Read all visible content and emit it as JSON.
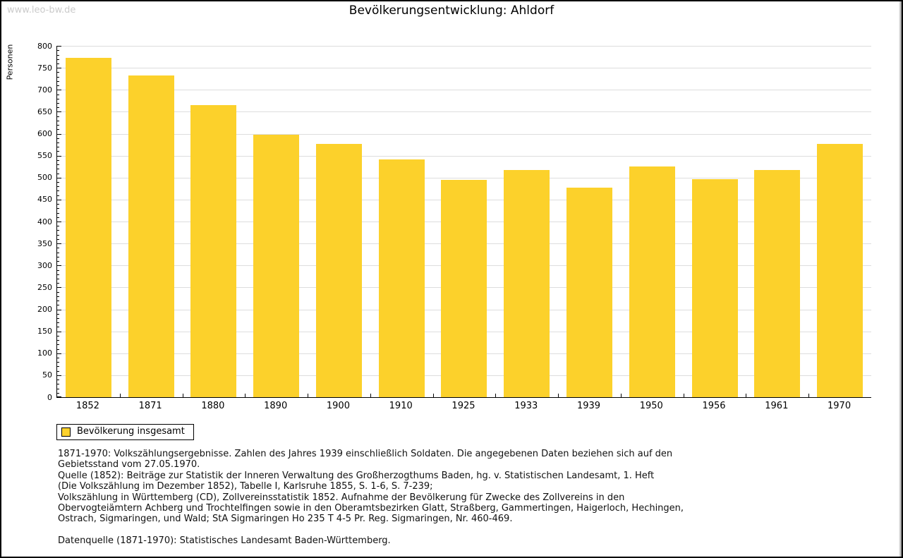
{
  "page": {
    "watermark": "www.leo-bw.de",
    "title": "Bevölkerungsentwicklung: Ahldorf"
  },
  "chart_data": {
    "type": "bar",
    "title": "Bevölkerungsentwicklung: Ahldorf",
    "xlabel": "",
    "ylabel": "Personen",
    "categories": [
      "1852",
      "1871",
      "1880",
      "1890",
      "1900",
      "1910",
      "1925",
      "1933",
      "1939",
      "1950",
      "1956",
      "1961",
      "1970"
    ],
    "values": [
      773,
      732,
      665,
      598,
      577,
      541,
      495,
      518,
      477,
      526,
      496,
      517,
      576
    ],
    "ylim": [
      0,
      800
    ],
    "ytick_step": 50,
    "yminor_step": 10,
    "grid": true,
    "legend_position": "bottom-left",
    "bar_color": "#FCD12B",
    "grid_color": "#DDDDDD",
    "axis_color": "#000000"
  },
  "legend": {
    "label": "Bevölkerung insgesamt",
    "swatch_color": "#FCD12B"
  },
  "footnotes": {
    "lines": [
      "1871-1970: Volkszählungsergebnisse. Zahlen des Jahres 1939 einschließlich Soldaten. Die angegebenen Daten beziehen sich auf den",
      "Gebietsstand vom 27.05.1970.",
      "Quelle (1852): Beiträge zur Statistik der Inneren Verwaltung des Großherzogthums Baden, hg. v. Statistischen Landesamt, 1. Heft",
      "(Die Volkszählung im Dezember 1852), Tabelle I, Karlsruhe 1855, S. 1-6, S. 7-239;",
      "Volkszählung in Württemberg (CD), Zollvereinsstatistik 1852. Aufnahme der Bevölkerung für Zwecke des Zollvereins in den",
      "Obervogteiämtern Achberg und Trochtelfingen sowie in den Oberamtsbezirken Glatt, Straßberg, Gammertingen, Haigerloch, Hechingen,",
      "Ostrach, Sigmaringen, und Wald; StA Sigmaringen Ho 235 T 4-5 Pr. Reg. Sigmaringen, Nr. 460-469."
    ],
    "datenquelle": "Datenquelle (1871-1970): Statistisches Landesamt Baden-Württemberg."
  }
}
